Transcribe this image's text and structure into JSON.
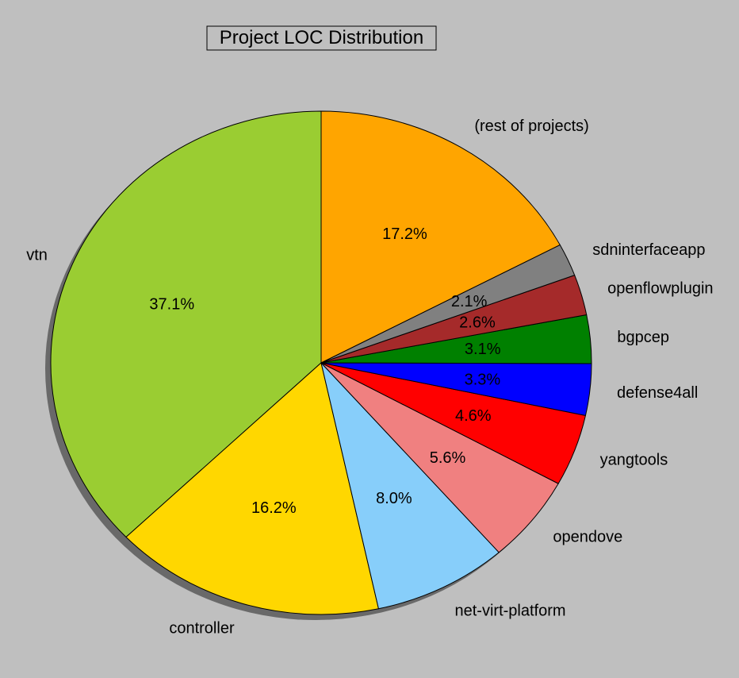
{
  "chart_data": {
    "type": "pie",
    "title": "Project LOC Distribution",
    "start_angle_deg": 90,
    "direction": "counterclockwise",
    "shadow": true,
    "slices": [
      {
        "label": "vtn",
        "value": 37.1,
        "pct_text": "37.1%",
        "color": "#9acd32"
      },
      {
        "label": "controller",
        "value": 16.2,
        "pct_text": "16.2%",
        "color": "#ffd700"
      },
      {
        "label": "net-virt-platform",
        "value": 8.0,
        "pct_text": "8.0%",
        "color": "#87cefa"
      },
      {
        "label": "opendove",
        "value": 5.6,
        "pct_text": "5.6%",
        "color": "#f08080"
      },
      {
        "label": "yangtools",
        "value": 4.6,
        "pct_text": "4.6%",
        "color": "#ff0000"
      },
      {
        "label": "defense4all",
        "value": 3.3,
        "pct_text": "3.3%",
        "color": "#0000ff"
      },
      {
        "label": "bgpcep",
        "value": 3.1,
        "pct_text": "3.1%",
        "color": "#008000"
      },
      {
        "label": "openflowplugin",
        "value": 2.6,
        "pct_text": "2.6%",
        "color": "#a52a2a"
      },
      {
        "label": "sdninterfaceapp",
        "value": 2.1,
        "pct_text": "2.1%",
        "color": "#808080"
      },
      {
        "label": "(rest of projects)",
        "value": 17.2,
        "pct_text": "17.2%",
        "color": "#ffa500"
      }
    ]
  }
}
